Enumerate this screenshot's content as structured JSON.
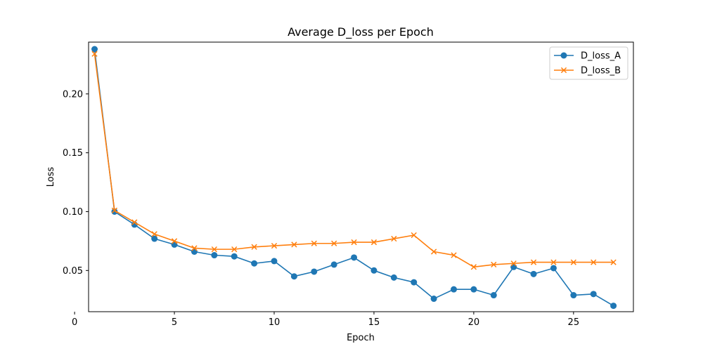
{
  "chart_data": {
    "type": "line",
    "title": "Average D_loss per Epoch",
    "xlabel": "Epoch",
    "ylabel": "Loss",
    "xlim": [
      0.7,
      28.0
    ],
    "ylim": [
      0.015,
      0.244
    ],
    "xticks": [
      0,
      5,
      10,
      15,
      20,
      25
    ],
    "yticks": [
      0.05,
      0.1,
      0.15,
      0.2
    ],
    "ytick_labels": [
      "0.05",
      "0.10",
      "0.15",
      "0.20"
    ],
    "legend_position": "top-right",
    "grid": false,
    "x": [
      1,
      2,
      3,
      4,
      5,
      6,
      7,
      8,
      9,
      10,
      11,
      12,
      13,
      14,
      15,
      16,
      17,
      18,
      19,
      20,
      21,
      22,
      23,
      24,
      25,
      26,
      27
    ],
    "series": [
      {
        "name": "D_loss_A",
        "color": "#1f77b4",
        "marker": "circle",
        "values": [
          0.238,
          0.1,
          0.089,
          0.077,
          0.072,
          0.066,
          0.063,
          0.062,
          0.056,
          0.058,
          0.045,
          0.049,
          0.055,
          0.061,
          0.05,
          0.044,
          0.04,
          0.026,
          0.034,
          0.034,
          0.029,
          0.053,
          0.047,
          0.052,
          0.029,
          0.03,
          0.02
        ]
      },
      {
        "name": "D_loss_B",
        "color": "#ff7f0e",
        "marker": "x",
        "values": [
          0.234,
          0.101,
          0.091,
          0.081,
          0.075,
          0.069,
          0.068,
          0.068,
          0.07,
          0.071,
          0.072,
          0.073,
          0.073,
          0.074,
          0.074,
          0.077,
          0.08,
          0.066,
          0.063,
          0.053,
          0.055,
          0.056,
          0.057,
          0.057,
          0.057,
          0.057,
          0.057
        ]
      }
    ]
  }
}
